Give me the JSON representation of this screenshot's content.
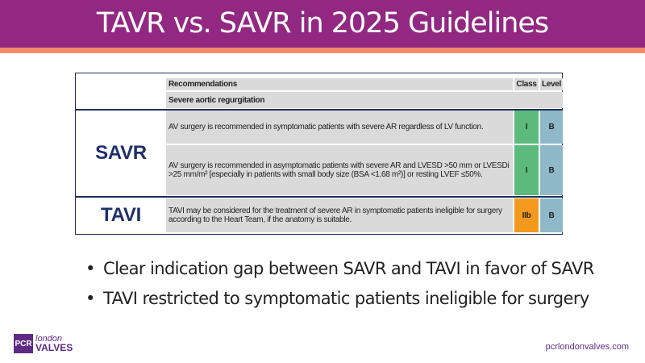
{
  "title": "TAVR vs. SAVR in 2025 Guidelines",
  "table": {
    "headers": {
      "recommendations": "Recommendations",
      "class": "Class",
      "level": "Level"
    },
    "section": "Severe aortic regurgitation",
    "groups": [
      {
        "label": "SAVR"
      },
      {
        "label": "TAVI"
      }
    ],
    "rows": [
      {
        "text": "AV surgery is recommended in symptomatic patients with severe AR regardless of LV function.",
        "class": "I",
        "level": "B"
      },
      {
        "text": "AV surgery is recommended in asymptomatic patients with severe AR and LVESD >50 mm or LVESDi >25 mm/m² [especially in patients with small body size (BSA <1.68 m²)] or resting LVEF ≤50%.",
        "class": "I",
        "level": "B"
      },
      {
        "text": "TAVI may be considered for the treatment of severe AR in symptomatic patients ineligible for surgery according to the Heart Team, if the anatomy is suitable.",
        "class": "IIb",
        "level": "B"
      }
    ],
    "colors": {
      "class_I": "#5dba7d",
      "class_IIb": "#f39a1e",
      "level": "#8fb9c9"
    }
  },
  "bullets": [
    "Clear indication gap between SAVR and TAVI in favor of SAVR",
    "TAVI restricted to symptomatic patients ineligible for surgery"
  ],
  "footer": {
    "logo_box": "PCR",
    "logo_line1": "london",
    "logo_line2": "VALVES",
    "url": "pcrlondonvalves.com"
  }
}
